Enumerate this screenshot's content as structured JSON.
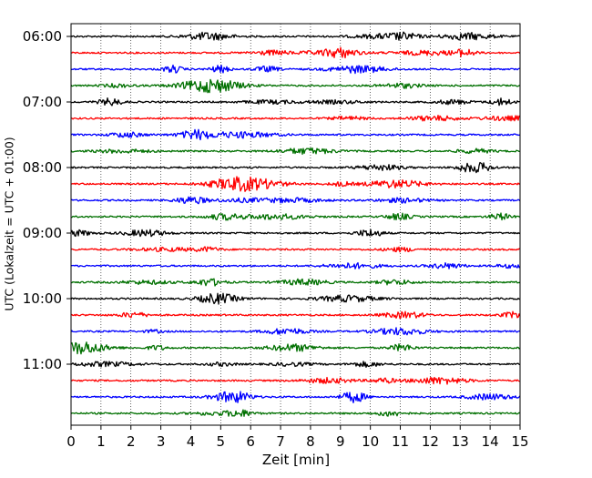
{
  "chart_data": {
    "type": "line",
    "xlabel": "Zeit  [min]",
    "ylabel": "UTC (Lokalzeit = UTC + 01:00)",
    "x_range": [
      0,
      15
    ],
    "x_ticks": [
      "0",
      "1",
      "2",
      "3",
      "4",
      "5",
      "6",
      "7",
      "8",
      "9",
      "10",
      "11",
      "12",
      "13",
      "14",
      "15"
    ],
    "y_tick_labels": [
      "06:00",
      "07:00",
      "08:00",
      "09:00",
      "10:00",
      "11:00"
    ],
    "trace_interval_minutes": 15,
    "trace_count": 24,
    "first_trace_utc": "06:00",
    "color_cycle": [
      "#000000",
      "#ff0000",
      "#0000ff",
      "#007000"
    ],
    "vertical_grid": "dotted",
    "legend": "none",
    "traces": [
      {
        "start": "06:00",
        "color": "#000000"
      },
      {
        "start": "06:15",
        "color": "#ff0000"
      },
      {
        "start": "06:30",
        "color": "#0000ff"
      },
      {
        "start": "06:45",
        "color": "#007000"
      },
      {
        "start": "07:00",
        "color": "#000000"
      },
      {
        "start": "07:15",
        "color": "#ff0000"
      },
      {
        "start": "07:30",
        "color": "#0000ff"
      },
      {
        "start": "07:45",
        "color": "#007000"
      },
      {
        "start": "08:00",
        "color": "#000000"
      },
      {
        "start": "08:15",
        "color": "#ff0000"
      },
      {
        "start": "08:30",
        "color": "#0000ff"
      },
      {
        "start": "08:45",
        "color": "#007000"
      },
      {
        "start": "09:00",
        "color": "#000000"
      },
      {
        "start": "09:15",
        "color": "#ff0000"
      },
      {
        "start": "09:30",
        "color": "#0000ff"
      },
      {
        "start": "09:45",
        "color": "#007000"
      },
      {
        "start": "10:00",
        "color": "#000000"
      },
      {
        "start": "10:15",
        "color": "#ff0000"
      },
      {
        "start": "10:30",
        "color": "#0000ff"
      },
      {
        "start": "10:45",
        "color": "#007000"
      },
      {
        "start": "11:00",
        "color": "#000000"
      },
      {
        "start": "11:15",
        "color": "#ff0000"
      },
      {
        "start": "11:30",
        "color": "#0000ff"
      },
      {
        "start": "11:45",
        "color": "#007000"
      }
    ]
  }
}
